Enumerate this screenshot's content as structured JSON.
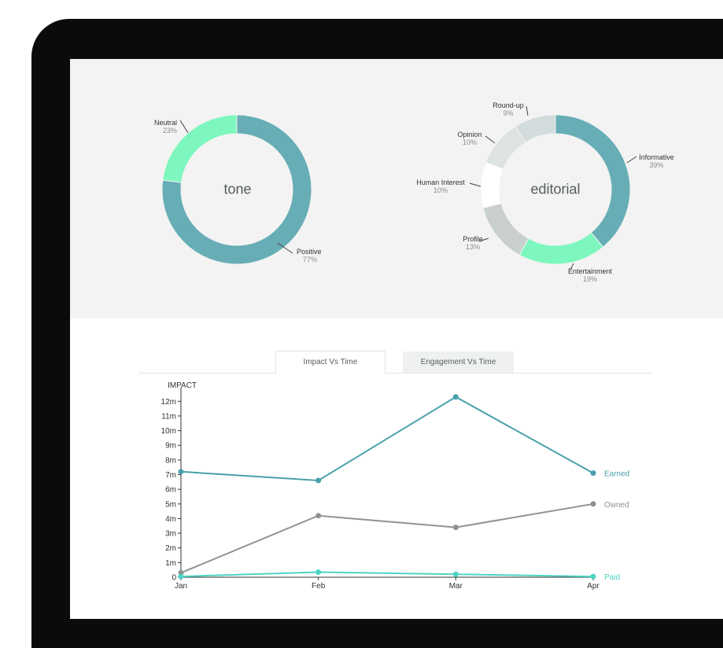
{
  "tone_chart": {
    "center_label": "tone",
    "segments": [
      {
        "name": "Positive",
        "pct": "77%",
        "value": 77,
        "color": "#67adb6"
      },
      {
        "name": "Neutral",
        "pct": "23%",
        "value": 23,
        "color": "#7ef7be"
      }
    ]
  },
  "editorial_chart": {
    "center_label": "editorial",
    "segments": [
      {
        "name": "Informative",
        "pct": "39%",
        "value": 39,
        "color": "#67adb6"
      },
      {
        "name": "Entertainment",
        "pct": "19%",
        "value": 19,
        "color": "#7ef7be"
      },
      {
        "name": "Profile",
        "pct": "13%",
        "value": 13,
        "color": "#c9cfcf"
      },
      {
        "name": "Human Interest",
        "pct": "10%",
        "value": 10,
        "color": "#ffffff"
      },
      {
        "name": "Opinion",
        "pct": "10%",
        "value": 10,
        "color": "#dde2e2"
      },
      {
        "name": "Round-up",
        "pct": "9%",
        "value": 9,
        "color": "#d2dcdc"
      }
    ]
  },
  "tabs": [
    {
      "label": "Impact Vs Time",
      "active": true
    },
    {
      "label": "Engagement Vs Time",
      "active": false
    }
  ],
  "chart_data": {
    "type": "line",
    "ylabel": "IMPACT",
    "categories": [
      "Jan",
      "Feb",
      "Mar",
      "Apr"
    ],
    "ylim": [
      0,
      12.5
    ],
    "yticks": [
      0,
      1,
      2,
      3,
      4,
      5,
      6,
      7,
      8,
      9,
      10,
      11,
      12
    ],
    "ytick_labels": [
      "0",
      "1m",
      "2m",
      "3m",
      "4m",
      "5m",
      "6m",
      "7m",
      "8m",
      "9m",
      "10m",
      "11m",
      "12m"
    ],
    "series": [
      {
        "name": "Earned",
        "values": [
          7.2,
          6.6,
          12.3,
          7.1
        ],
        "color": "#4aa0ab"
      },
      {
        "name": "Owned",
        "values": [
          0.3,
          4.2,
          3.4,
          5.0
        ],
        "color": "#8f9393"
      },
      {
        "name": "Paid",
        "values": [
          0.05,
          0.35,
          0.2,
          0.05
        ],
        "color": "#4fd3c4"
      }
    ]
  }
}
